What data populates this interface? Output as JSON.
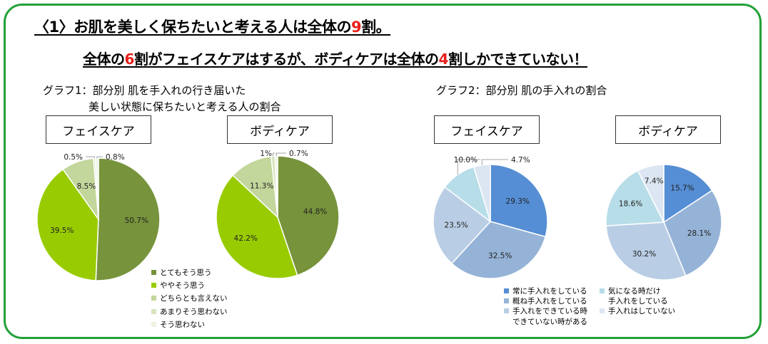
{
  "heading1": {
    "part1": "〈1〉お肌を美しく保ちたいと考える人は全体の",
    "num": "9",
    "part2": "割。"
  },
  "heading2": {
    "part1": "全体の",
    "num1": "6",
    "part2": "割がフェイスケアはするが、ボディケアは全体の",
    "num2": "4",
    "part3": "割しかできていない！"
  },
  "graph1": {
    "title_line1": "グラフ1：部分別  肌を手入れの行き届いた",
    "title_line2": "美しい状態に保ちたいと考える人の割合",
    "legend": [
      {
        "label": "とてもそう思う",
        "color": "#77933c"
      },
      {
        "label": "ややそう思う",
        "color": "#99cc00"
      },
      {
        "label": "どちらとも言えない",
        "color": "#c3d69b"
      },
      {
        "label": "あまりそう思わない",
        "color": "#d7e4bd"
      },
      {
        "label": "そう思わない",
        "color": "#eef3e1"
      }
    ]
  },
  "graph2": {
    "title": "グラフ2：部分別  肌の手入れの割合",
    "legend": [
      {
        "label": "常に手入れをしている",
        "color": "#558ed5"
      },
      {
        "label": "概ね手入れをしている",
        "color": "#95b3d7"
      },
      {
        "label": "手入れをできている時\nできていない時がある",
        "color": "#b9cde5"
      },
      {
        "label": "気になる時だけ\n手入れをしている",
        "color": "#b7dde8"
      },
      {
        "label": "手入れはしていない",
        "color": "#dce6f2"
      }
    ]
  },
  "chart_data": [
    {
      "type": "pie",
      "title": "フェイスケア",
      "categories": [
        "とてもそう思う",
        "ややそう思う",
        "どちらとも言えない",
        "あまりそう思わない",
        "そう思わない"
      ],
      "values": [
        50.7,
        39.5,
        8.5,
        0.5,
        0.8
      ],
      "labels": [
        "50.7%",
        "39.5%",
        "8.5%",
        "0.5%",
        "0.8%"
      ],
      "colors": [
        "#77933c",
        "#99cc00",
        "#c3d69b",
        "#d7e4bd",
        "#eef3e1"
      ]
    },
    {
      "type": "pie",
      "title": "ボディケア",
      "categories": [
        "とてもそう思う",
        "ややそう思う",
        "どちらとも言えない",
        "あまりそう思わない",
        "そう思わない"
      ],
      "values": [
        44.8,
        42.2,
        11.3,
        1,
        0.7
      ],
      "labels": [
        "44.8%",
        "42.2%",
        "11.3%",
        "1%",
        "0.7%"
      ],
      "colors": [
        "#77933c",
        "#99cc00",
        "#c3d69b",
        "#d7e4bd",
        "#eef3e1"
      ]
    },
    {
      "type": "pie",
      "title": "フェイスケア",
      "categories": [
        "常に手入れをしている",
        "概ね手入れをしている",
        "手入れをできている時できていない時がある",
        "気になる時だけ手入れをしている",
        "手入れはしていない"
      ],
      "values": [
        29.3,
        32.5,
        23.5,
        10.0,
        4.7
      ],
      "labels": [
        "29.3%",
        "32.5%",
        "23.5%",
        "10.0%",
        "4.7%"
      ],
      "colors": [
        "#558ed5",
        "#95b3d7",
        "#b9cde5",
        "#b7dde8",
        "#dce6f2"
      ]
    },
    {
      "type": "pie",
      "title": "ボディケア",
      "categories": [
        "常に手入れをしている",
        "概ね手入れをしている",
        "手入れをできている時できていない時がある",
        "気になる時だけ手入れをしている",
        "手入れはしていない"
      ],
      "values": [
        15.7,
        28.1,
        30.2,
        18.6,
        7.4
      ],
      "labels": [
        "15.7%",
        "28.1%",
        "30.2%",
        "18.6%",
        "7.4%"
      ],
      "colors": [
        "#558ed5",
        "#95b3d7",
        "#b9cde5",
        "#b7dde8",
        "#dce6f2"
      ]
    }
  ]
}
